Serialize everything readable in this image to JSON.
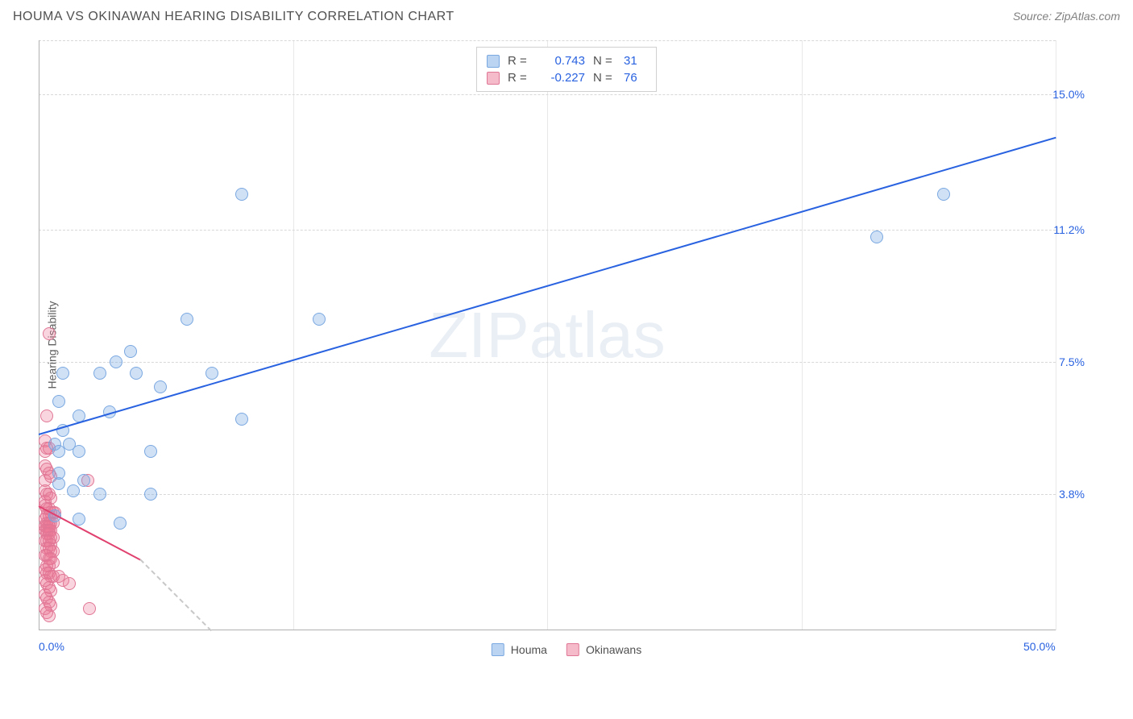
{
  "header": {
    "title": "HOUMA VS OKINAWAN HEARING DISABILITY CORRELATION CHART",
    "source": "Source: ZipAtlas.com"
  },
  "watermark": {
    "part1": "ZIP",
    "part2": "atlas"
  },
  "chart": {
    "type": "scatter",
    "background_color": "#ffffff",
    "grid_color": "#d8d8d8",
    "axis_color": "#b0b0b0",
    "tick_color": "#2962e0",
    "label_color": "#606060",
    "ylabel": "Hearing Disability",
    "ylabel_fontsize": 14,
    "tick_fontsize": 14,
    "xlim": [
      0.0,
      50.0
    ],
    "ylim": [
      0.0,
      16.5
    ],
    "yticks": [
      {
        "value": 3.8,
        "label": "3.8%"
      },
      {
        "value": 7.5,
        "label": "7.5%"
      },
      {
        "value": 11.2,
        "label": "11.2%"
      },
      {
        "value": 15.0,
        "label": "15.0%"
      }
    ],
    "xticks": [
      {
        "value": 0.0,
        "label": "0.0%"
      },
      {
        "value": 50.0,
        "label": "50.0%"
      }
    ],
    "xgrid_values": [
      12.5,
      25.0,
      37.5,
      50.0
    ],
    "dot_radius": 8,
    "series": {
      "houma": {
        "label": "Houma",
        "fill_color": "rgba(120,170,230,0.35)",
        "border_color": "#7aa8e0",
        "trend_color": "#2962e0",
        "trend_width": 2,
        "trend": {
          "x1": 0.0,
          "y1": 5.5,
          "x2": 50.0,
          "y2": 13.8
        },
        "points": [
          [
            10.0,
            12.2
          ],
          [
            41.2,
            11.0
          ],
          [
            44.5,
            12.2
          ],
          [
            7.3,
            8.7
          ],
          [
            13.8,
            8.7
          ],
          [
            1.2,
            7.2
          ],
          [
            3.0,
            7.2
          ],
          [
            4.8,
            7.2
          ],
          [
            3.8,
            7.5
          ],
          [
            4.5,
            7.8
          ],
          [
            8.5,
            7.2
          ],
          [
            6.0,
            6.8
          ],
          [
            1.0,
            6.4
          ],
          [
            2.0,
            6.0
          ],
          [
            3.5,
            6.1
          ],
          [
            1.2,
            5.6
          ],
          [
            10.0,
            5.9
          ],
          [
            0.8,
            5.2
          ],
          [
            1.0,
            5.0
          ],
          [
            1.5,
            5.2
          ],
          [
            2.0,
            5.0
          ],
          [
            5.5,
            5.0
          ],
          [
            1.0,
            4.4
          ],
          [
            1.0,
            4.1
          ],
          [
            2.2,
            4.2
          ],
          [
            1.7,
            3.9
          ],
          [
            3.0,
            3.8
          ],
          [
            5.5,
            3.8
          ],
          [
            0.8,
            3.2
          ],
          [
            2.0,
            3.1
          ],
          [
            4.0,
            3.0
          ]
        ]
      },
      "okinawans": {
        "label": "Okinawans",
        "fill_color": "rgba(235,120,150,0.30)",
        "border_color": "#e07695",
        "trend_color": "#e0416f",
        "trend_width": 2,
        "trend": {
          "x1": 0.0,
          "y1": 3.5,
          "x2": 5.0,
          "y2": 2.0
        },
        "dash_trend": {
          "x1": 5.0,
          "y1": 2.0,
          "x2": 8.5,
          "y2": 0.0
        },
        "points": [
          [
            0.5,
            8.3
          ],
          [
            0.4,
            6.0
          ],
          [
            0.3,
            5.3
          ],
          [
            0.4,
            5.1
          ],
          [
            0.3,
            5.0
          ],
          [
            0.5,
            5.1
          ],
          [
            2.4,
            4.2
          ],
          [
            0.3,
            4.6
          ],
          [
            0.4,
            4.5
          ],
          [
            0.5,
            4.4
          ],
          [
            0.3,
            4.2
          ],
          [
            0.6,
            4.3
          ],
          [
            0.3,
            3.9
          ],
          [
            0.4,
            3.8
          ],
          [
            0.5,
            3.8
          ],
          [
            0.6,
            3.7
          ],
          [
            0.3,
            3.6
          ],
          [
            0.3,
            3.5
          ],
          [
            0.4,
            3.4
          ],
          [
            0.5,
            3.4
          ],
          [
            0.6,
            3.3
          ],
          [
            0.7,
            3.3
          ],
          [
            0.8,
            3.3
          ],
          [
            0.4,
            3.2
          ],
          [
            0.5,
            3.2
          ],
          [
            0.3,
            3.1
          ],
          [
            0.4,
            3.0
          ],
          [
            0.5,
            3.0
          ],
          [
            0.6,
            3.0
          ],
          [
            0.7,
            3.0
          ],
          [
            0.3,
            2.9
          ],
          [
            0.4,
            2.9
          ],
          [
            0.5,
            2.9
          ],
          [
            0.3,
            2.8
          ],
          [
            0.4,
            2.8
          ],
          [
            0.5,
            2.8
          ],
          [
            0.6,
            2.8
          ],
          [
            0.4,
            2.7
          ],
          [
            0.5,
            2.7
          ],
          [
            0.6,
            2.6
          ],
          [
            0.7,
            2.6
          ],
          [
            0.3,
            2.5
          ],
          [
            0.4,
            2.5
          ],
          [
            0.5,
            2.5
          ],
          [
            0.6,
            2.4
          ],
          [
            0.4,
            2.3
          ],
          [
            0.5,
            2.3
          ],
          [
            0.6,
            2.2
          ],
          [
            0.7,
            2.2
          ],
          [
            0.3,
            2.1
          ],
          [
            0.4,
            2.1
          ],
          [
            0.5,
            2.0
          ],
          [
            0.6,
            2.0
          ],
          [
            0.7,
            1.9
          ],
          [
            0.4,
            1.8
          ],
          [
            0.5,
            1.8
          ],
          [
            0.3,
            1.7
          ],
          [
            0.4,
            1.6
          ],
          [
            0.5,
            1.6
          ],
          [
            0.6,
            1.5
          ],
          [
            0.7,
            1.5
          ],
          [
            0.3,
            1.4
          ],
          [
            0.4,
            1.3
          ],
          [
            0.5,
            1.2
          ],
          [
            0.6,
            1.1
          ],
          [
            0.3,
            1.0
          ],
          [
            0.4,
            0.9
          ],
          [
            0.5,
            0.8
          ],
          [
            0.6,
            0.7
          ],
          [
            0.3,
            0.6
          ],
          [
            0.4,
            0.5
          ],
          [
            0.5,
            0.4
          ],
          [
            1.0,
            1.5
          ],
          [
            1.2,
            1.4
          ],
          [
            1.5,
            1.3
          ],
          [
            2.5,
            0.6
          ]
        ]
      }
    },
    "stats": [
      {
        "swatch": "blue",
        "r_label": "R =",
        "r_value": "0.743",
        "n_label": "N =",
        "n_value": "31"
      },
      {
        "swatch": "pink",
        "r_label": "R =",
        "r_value": "-0.227",
        "n_label": "N =",
        "n_value": "76"
      }
    ],
    "bottom_legend": [
      {
        "swatch": "blue",
        "label": "Houma"
      },
      {
        "swatch": "pink",
        "label": "Okinawans"
      }
    ]
  }
}
